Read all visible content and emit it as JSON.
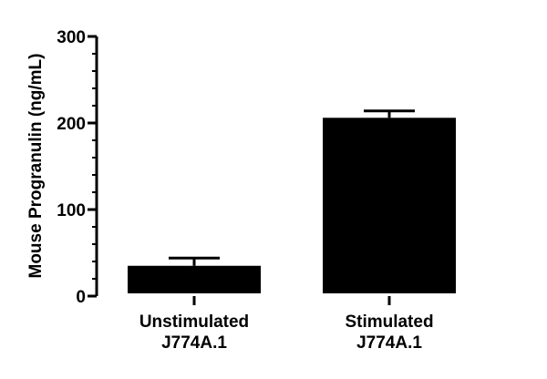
{
  "chart_data": {
    "type": "bar",
    "title": "",
    "xlabel": "",
    "ylabel": "Mouse Progranulin (ng/mL)",
    "categories": [
      [
        "Unstimulated",
        "J774A.1"
      ],
      [
        "Stimulated",
        "J774A.1"
      ]
    ],
    "values": [
      35,
      206
    ],
    "error": [
      9,
      8
    ],
    "ylim": [
      0,
      300
    ],
    "yticks": [
      0,
      100,
      200,
      300
    ],
    "y_minor_step": 20,
    "grid": false,
    "legend": "none",
    "bar_color": "#000000",
    "axis_color": "#000000"
  }
}
